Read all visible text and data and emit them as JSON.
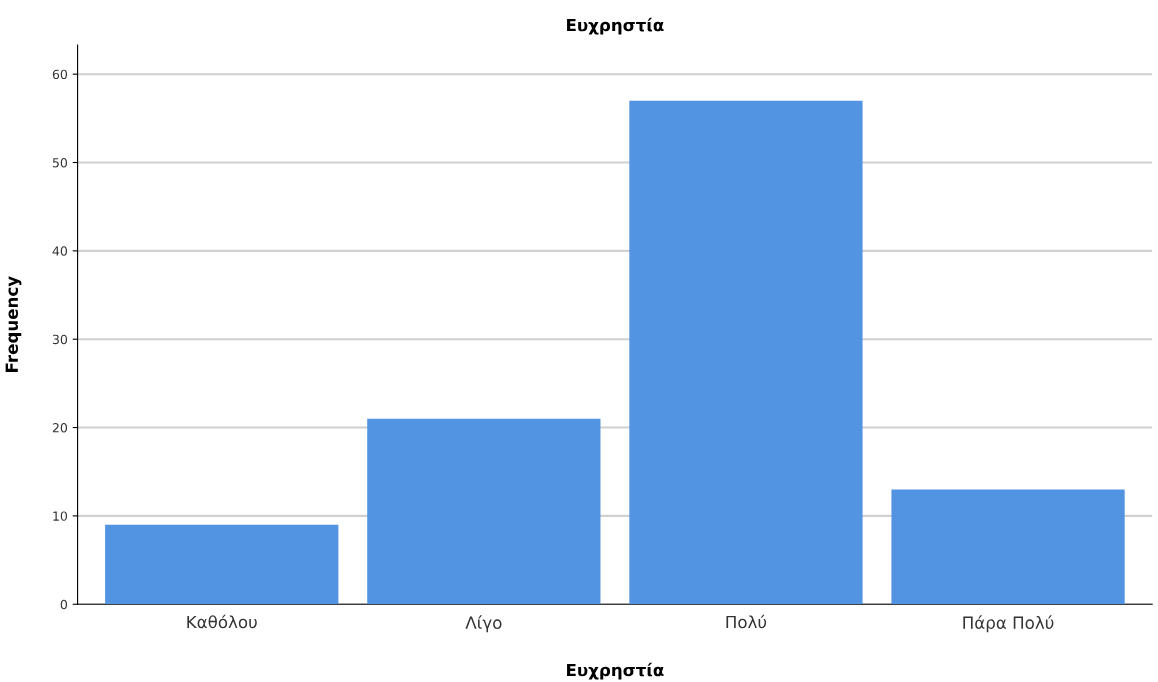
{
  "chart_data": {
    "type": "bar",
    "title": "Ευχρηστία",
    "xlabel": "Ευχρηστία",
    "ylabel": "Frequency",
    "categories": [
      "Καθόλου",
      "Λίγο",
      "Πολύ",
      "Πάρα Πολύ"
    ],
    "values": [
      9,
      21,
      57,
      13
    ],
    "color": "#5294e2",
    "ylim": [
      0,
      63.3
    ],
    "yticks": [
      0,
      10,
      20,
      30,
      40,
      50,
      60
    ],
    "grid": "y",
    "legend": false
  }
}
